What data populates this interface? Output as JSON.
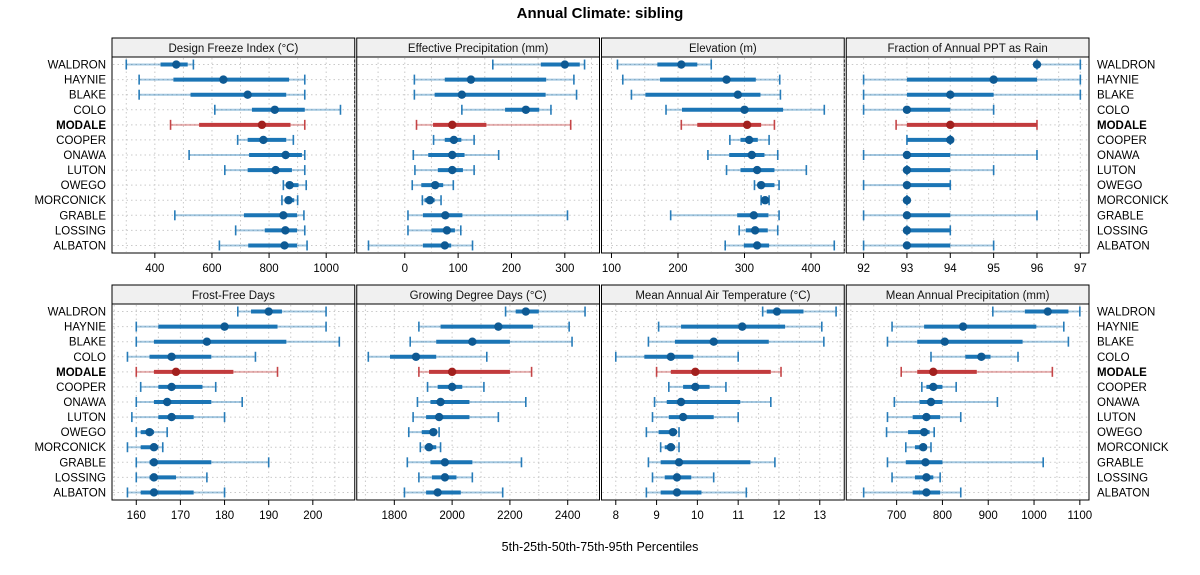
{
  "title": "Annual Climate: sibling",
  "footer": "5th-25th-50th-75th-95th Percentiles",
  "chart_data": {
    "type": "dotplot",
    "title": "Annual Climate: sibling",
    "xlabel": "5th-25th-50th-75th-95th Percentiles",
    "percentile_labels": [
      "5th",
      "25th",
      "50th",
      "75th",
      "95th"
    ],
    "sites": [
      "WALDRON",
      "HAYNIE",
      "BLAKE",
      "COLO",
      "MODALE",
      "COOPER",
      "ONAWA",
      "LUTON",
      "OWEGO",
      "MORCONICK",
      "GRABLE",
      "LOSSING",
      "ALBATON"
    ],
    "highlight_site": "MODALE",
    "colors": {
      "normal_line": "#1b75b5",
      "normal_dot": "#0e5a94",
      "highlight_line": "#c23b3d",
      "highlight_dot": "#a2201e",
      "grid": "#c9c9c9",
      "strip_fill": "#f0f0f0",
      "border": "#000000"
    },
    "panels": [
      {
        "title": "Design Freeze Index (°C)",
        "row": 0,
        "col": 0,
        "xlim": [
          250,
          1100
        ],
        "ticks": [
          400,
          600,
          800,
          1000
        ],
        "minor_step": 100,
        "values": [
          [
            300,
            420,
            475,
            515,
            535
          ],
          [
            345,
            465,
            640,
            870,
            925
          ],
          [
            345,
            525,
            725,
            860,
            925
          ],
          [
            610,
            740,
            820,
            925,
            1050
          ],
          [
            455,
            555,
            775,
            875,
            925
          ],
          [
            690,
            725,
            780,
            860,
            885
          ],
          [
            520,
            730,
            858,
            915,
            925
          ],
          [
            645,
            725,
            823,
            880,
            925
          ],
          [
            850,
            860,
            872,
            903,
            930
          ],
          [
            845,
            855,
            868,
            888,
            900
          ],
          [
            470,
            712,
            850,
            898,
            922
          ],
          [
            683,
            785,
            857,
            898,
            925
          ],
          [
            626,
            727,
            854,
            898,
            933
          ]
        ]
      },
      {
        "title": "Effective Precipitation (mm)",
        "row": 0,
        "col": 1,
        "xlim": [
          -90,
          365
        ],
        "ticks": [
          0,
          100,
          200,
          300
        ],
        "minor_step": 50,
        "values": [
          [
            165,
            255,
            300,
            328,
            337
          ],
          [
            18,
            75,
            124,
            265,
            317
          ],
          [
            18,
            56,
            107,
            264,
            322
          ],
          [
            107,
            188,
            227,
            252,
            274
          ],
          [
            22,
            53,
            89,
            153,
            311
          ],
          [
            54,
            75,
            92,
            106,
            130
          ],
          [
            16,
            44,
            89,
            112,
            176
          ],
          [
            19,
            62,
            89,
            109,
            130
          ],
          [
            14,
            31,
            57,
            72,
            91
          ],
          [
            33,
            37,
            47,
            56,
            68
          ],
          [
            6,
            34,
            76,
            108,
            305
          ],
          [
            6,
            50,
            79,
            94,
            105
          ],
          [
            -68,
            34,
            75,
            87,
            127
          ]
        ]
      },
      {
        "title": "Elevation (m)",
        "row": 0,
        "col": 2,
        "xlim": [
          85,
          450
        ],
        "ticks": [
          100,
          200,
          300,
          400
        ],
        "minor_step": 50,
        "values": [
          [
            109,
            169,
            205,
            229,
            250
          ],
          [
            117,
            173,
            273,
            317,
            353
          ],
          [
            130,
            151,
            290,
            324,
            354
          ],
          [
            182,
            206,
            300,
            358,
            420
          ],
          [
            205,
            229,
            304,
            325,
            345
          ],
          [
            278,
            294,
            307,
            320,
            337
          ],
          [
            245,
            277,
            311,
            330,
            350
          ],
          [
            273,
            294,
            319,
            345,
            393
          ],
          [
            315,
            320,
            325,
            345,
            352
          ],
          [
            325,
            328,
            331,
            335,
            337
          ],
          [
            189,
            289,
            314,
            336,
            352
          ],
          [
            292,
            302,
            316,
            335,
            350
          ],
          [
            271,
            299,
            319,
            337,
            435
          ]
        ]
      },
      {
        "title": "Fraction of Annual PPT as Rain",
        "row": 0,
        "col": 3,
        "xlim": [
          91.6,
          97.2
        ],
        "ticks": [
          92,
          93,
          94,
          95,
          96,
          97
        ],
        "minor_step": 0.5,
        "values": [
          [
            96,
            96,
            96,
            96,
            97
          ],
          [
            92,
            93,
            95,
            96,
            97
          ],
          [
            92,
            93,
            94,
            95,
            97
          ],
          [
            92,
            93,
            93,
            94,
            95
          ],
          [
            92.75,
            93,
            94,
            96,
            96
          ],
          [
            93,
            93,
            94,
            94,
            94
          ],
          [
            92,
            93,
            93,
            94,
            96
          ],
          [
            93,
            93,
            93,
            94,
            95
          ],
          [
            92,
            93,
            93,
            94,
            94
          ],
          [
            93,
            93,
            93,
            93,
            93
          ],
          [
            92,
            93,
            93,
            94,
            96
          ],
          [
            93,
            93,
            93,
            94,
            94
          ],
          [
            92,
            93,
            93,
            94,
            95
          ]
        ]
      },
      {
        "title": "Frost-Free Days",
        "row": 1,
        "col": 0,
        "xlim": [
          154.5,
          209.5
        ],
        "ticks": [
          160,
          170,
          180,
          190,
          200
        ],
        "minor_step": 5,
        "values": [
          [
            183,
            186,
            190,
            193,
            203
          ],
          [
            160,
            165,
            180,
            192,
            203
          ],
          [
            160,
            164,
            176,
            194,
            206
          ],
          [
            158,
            163,
            168,
            177,
            187
          ],
          [
            160,
            164,
            169,
            182,
            192
          ],
          [
            161,
            165,
            168,
            175,
            178
          ],
          [
            160,
            164,
            167,
            177,
            184
          ],
          [
            159,
            165,
            168,
            173,
            180
          ],
          [
            160,
            161,
            163,
            164,
            167
          ],
          [
            158,
            161,
            164,
            165,
            166
          ],
          [
            160,
            163,
            164,
            177,
            190
          ],
          [
            160,
            163,
            164,
            169,
            176
          ],
          [
            158,
            161,
            164,
            173,
            180
          ]
        ]
      },
      {
        "title": "Growing Degree Days (°C)",
        "row": 1,
        "col": 1,
        "xlim": [
          1670,
          2510
        ],
        "ticks": [
          1800,
          2000,
          2200,
          2400
        ],
        "minor_step": 100,
        "values": [
          [
            2185,
            2220,
            2255,
            2300,
            2460
          ],
          [
            1885,
            1960,
            2160,
            2280,
            2405
          ],
          [
            1855,
            1945,
            2070,
            2200,
            2415
          ],
          [
            1710,
            1785,
            1875,
            1945,
            2120
          ],
          [
            1885,
            1920,
            2000,
            2200,
            2275
          ],
          [
            1915,
            1950,
            2000,
            2035,
            2110
          ],
          [
            1880,
            1925,
            1960,
            2060,
            2255
          ],
          [
            1865,
            1910,
            1955,
            2060,
            2160
          ],
          [
            1850,
            1895,
            1935,
            1945,
            1955
          ],
          [
            1890,
            1905,
            1920,
            1945,
            1960
          ],
          [
            1845,
            1925,
            1975,
            2070,
            2240
          ],
          [
            1885,
            1930,
            1975,
            2015,
            2070
          ],
          [
            1835,
            1910,
            1950,
            2030,
            2175
          ]
        ]
      },
      {
        "title": "Mean Annual Air Temperature (°C)",
        "row": 1,
        "col": 2,
        "xlim": [
          7.65,
          13.6
        ],
        "ticks": [
          8,
          9,
          10,
          11,
          12,
          13
        ],
        "minor_step": 0.5,
        "values": [
          [
            11.6,
            11.7,
            11.95,
            12.6,
            13.4
          ],
          [
            9.05,
            9.6,
            11.1,
            12.15,
            13.05
          ],
          [
            8.8,
            9.45,
            10.4,
            11.75,
            13.1
          ],
          [
            8.0,
            8.7,
            9.35,
            9.9,
            11.0
          ],
          [
            9.0,
            9.35,
            9.95,
            11.8,
            12.05
          ],
          [
            9.3,
            9.65,
            9.95,
            10.3,
            10.7
          ],
          [
            8.95,
            9.25,
            9.6,
            11.05,
            11.8
          ],
          [
            8.9,
            9.3,
            9.65,
            10.4,
            11.0
          ],
          [
            8.75,
            9.05,
            9.4,
            9.5,
            9.55
          ],
          [
            9.1,
            9.2,
            9.35,
            9.45,
            9.55
          ],
          [
            8.8,
            9.1,
            9.55,
            11.3,
            11.9
          ],
          [
            8.9,
            9.2,
            9.5,
            9.85,
            10.4
          ],
          [
            8.75,
            9.1,
            9.5,
            10.1,
            11.2
          ]
        ]
      },
      {
        "title": "Mean Annual Precipitation (mm)",
        "row": 1,
        "col": 3,
        "xlim": [
          590,
          1120
        ],
        "ticks": [
          700,
          800,
          900,
          1000,
          1100
        ],
        "minor_step": 50,
        "values": [
          [
            910,
            980,
            1030,
            1075,
            1100
          ],
          [
            690,
            760,
            845,
            1005,
            1065
          ],
          [
            680,
            745,
            805,
            975,
            1075
          ],
          [
            775,
            850,
            885,
            905,
            965
          ],
          [
            710,
            745,
            780,
            875,
            1040
          ],
          [
            755,
            765,
            780,
            800,
            830
          ],
          [
            695,
            750,
            775,
            800,
            920
          ],
          [
            680,
            735,
            765,
            795,
            840
          ],
          [
            678,
            725,
            760,
            772,
            782
          ],
          [
            720,
            740,
            758,
            766,
            775
          ],
          [
            680,
            720,
            763,
            800,
            1020
          ],
          [
            690,
            740,
            765,
            780,
            795
          ],
          [
            628,
            735,
            765,
            795,
            840
          ]
        ]
      }
    ]
  }
}
